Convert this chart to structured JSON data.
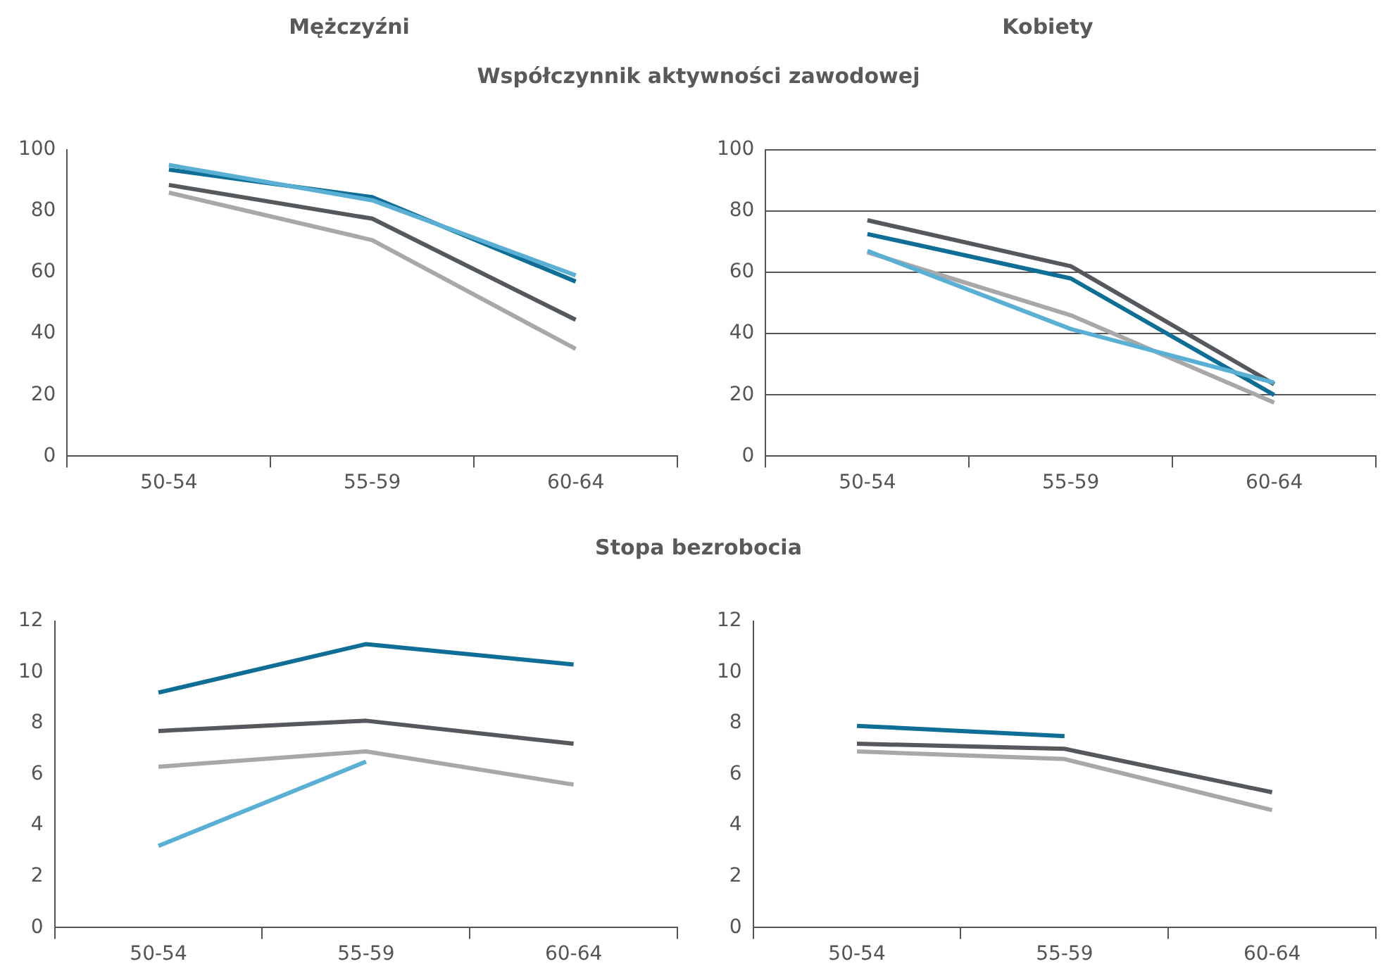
{
  "chart_data": [
    {
      "type": "line",
      "title": "Mężczyźni",
      "subtitle": "Współczynnik aktywności zawodowej",
      "categories": [
        "50-54",
        "55-59",
        "60-64"
      ],
      "ylim": [
        0,
        100
      ],
      "yticks": [
        0,
        20,
        40,
        60,
        80,
        100
      ],
      "grid": false,
      "legend": false,
      "marker": "none",
      "series": [
        {
          "color": "#5ab0d4",
          "values": [
            95,
            83.5,
            59
          ]
        },
        {
          "color": "#0e6e96",
          "values": [
            93.5,
            84.5,
            57
          ]
        },
        {
          "color": "#55595d",
          "values": [
            88.5,
            77.5,
            44.5
          ]
        },
        {
          "color": "#a8a8a8",
          "values": [
            86,
            70.5,
            35
          ]
        }
      ]
    },
    {
      "type": "line",
      "title": "Kobiety",
      "categories": [
        "50-54",
        "55-59",
        "60-64"
      ],
      "ylim": [
        0,
        100
      ],
      "yticks": [
        0,
        20,
        40,
        60,
        80,
        100
      ],
      "grid": "y",
      "legend": false,
      "marker": "none",
      "series": [
        {
          "color": "#5ab0d4",
          "values": [
            67,
            41.5,
            24
          ]
        },
        {
          "color": "#a8a8a8",
          "values": [
            66.5,
            46,
            17.5
          ]
        },
        {
          "color": "#0e6e96",
          "values": [
            72.5,
            58,
            20
          ]
        },
        {
          "color": "#55595d",
          "values": [
            77,
            62,
            23.5
          ]
        }
      ]
    },
    {
      "type": "line",
      "subtitle": "Stopa bezrobocia",
      "categories": [
        "50-54",
        "55-59",
        "60-64"
      ],
      "ylim": [
        0,
        12
      ],
      "yticks": [
        0,
        2,
        4,
        6,
        8,
        10,
        12
      ],
      "grid": false,
      "legend": false,
      "marker": "none",
      "series": [
        {
          "color": "#5ab0d4",
          "values": [
            3.2,
            6.5,
            null
          ]
        },
        {
          "color": "#a8a8a8",
          "values": [
            6.3,
            6.9,
            5.6
          ]
        },
        {
          "color": "#55595d",
          "values": [
            7.7,
            8.1,
            7.2
          ]
        },
        {
          "color": "#0e6e96",
          "values": [
            9.2,
            11.1,
            10.3
          ]
        }
      ]
    },
    {
      "type": "line",
      "categories": [
        "50-54",
        "55-59",
        "60-64"
      ],
      "ylim": [
        0,
        12
      ],
      "yticks": [
        0,
        2,
        4,
        6,
        8,
        10,
        12
      ],
      "grid": false,
      "legend": false,
      "marker": "none",
      "series": [
        {
          "color": "#a8a8a8",
          "values": [
            6.9,
            6.6,
            4.6
          ]
        },
        {
          "color": "#55595d",
          "values": [
            7.2,
            7.0,
            5.3
          ]
        },
        {
          "color": "#0e6e96",
          "values": [
            7.9,
            7.5,
            null
          ]
        }
      ]
    }
  ]
}
